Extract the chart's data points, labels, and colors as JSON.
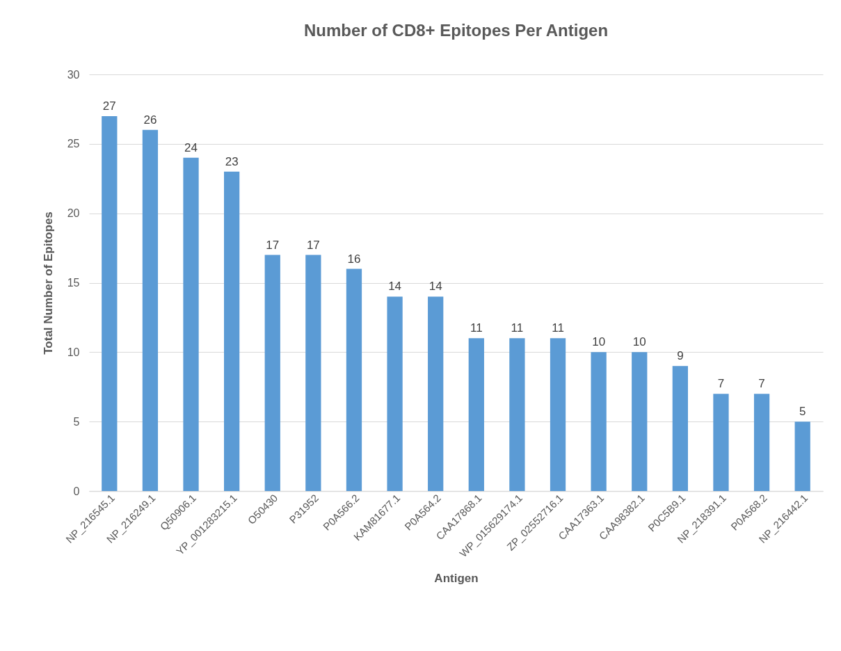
{
  "chart_data": {
    "type": "bar",
    "title": "Number of CD8+ Epitopes Per Antigen",
    "xlabel": "Antigen",
    "ylabel": "Total Number of Epitopes",
    "categories": [
      "NP_216545.1",
      "NP_216249.1",
      "Q50906.1",
      "YP_001283215.1",
      "O50430",
      "P31952",
      "P0A566.2",
      "KAM81677.1",
      "P0A564.2",
      "CAA17868.1",
      "WP_015629174.1",
      "ZP_02552716.1",
      "CAA17363.1",
      "CAA98382.1",
      "P0C5B9.1",
      "NP_218391.1",
      "P0A568.2",
      "NP_216442.1"
    ],
    "values": [
      27,
      26,
      24,
      23,
      17,
      17,
      16,
      14,
      14,
      11,
      11,
      11,
      10,
      10,
      9,
      7,
      7,
      5
    ],
    "color": "#5b9bd5",
    "ylim": [
      0,
      30
    ],
    "yticks": [
      0,
      5,
      10,
      15,
      20,
      25,
      30
    ],
    "grid": "y",
    "data_labels": true
  }
}
